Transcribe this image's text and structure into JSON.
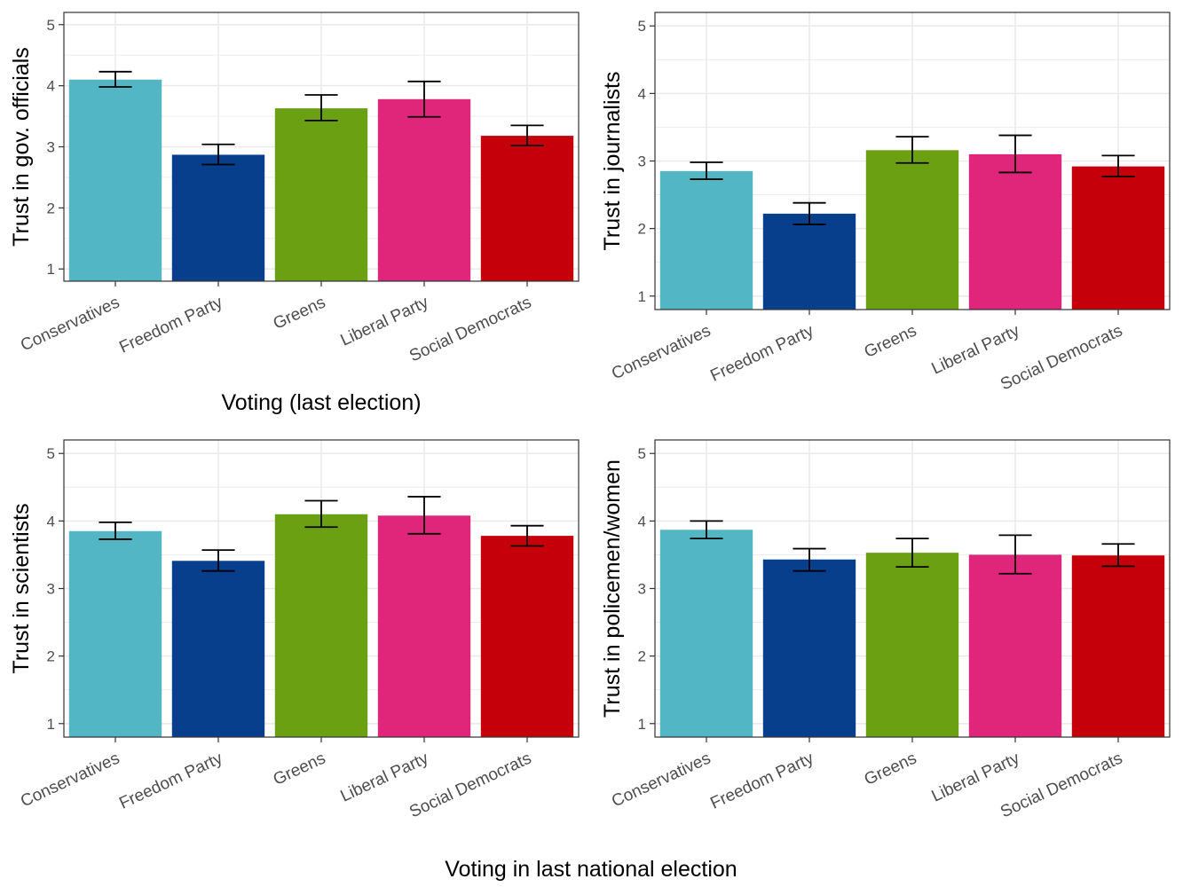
{
  "figure": {
    "xlabel": "Voting in last national election"
  },
  "chart_data": [
    {
      "type": "bar",
      "categories": [
        "Conservatives",
        "Freedom Party",
        "Greens",
        "Liberal Party",
        "Social Democrats"
      ],
      "values": [
        4.1,
        2.87,
        3.63,
        3.78,
        3.18
      ],
      "error_low": [
        3.98,
        2.71,
        3.43,
        3.49,
        3.02
      ],
      "error_high": [
        4.23,
        3.04,
        3.85,
        4.07,
        3.35
      ],
      "colors": [
        "#52b6c4",
        "#073f8d",
        "#6aa012",
        "#e0267a",
        "#c5000b"
      ],
      "ylabel": "Trust in gov. officials",
      "xlabel": "Voting (last election)",
      "ylim": [
        0.8,
        5.2
      ],
      "yticks": [
        1,
        2,
        3,
        4,
        5
      ],
      "grid": true
    },
    {
      "type": "bar",
      "categories": [
        "Conservatives",
        "Freedom Party",
        "Greens",
        "Liberal Party",
        "Social Democrats"
      ],
      "values": [
        2.85,
        2.22,
        3.16,
        3.1,
        2.92
      ],
      "error_low": [
        2.73,
        2.06,
        2.97,
        2.83,
        2.77
      ],
      "error_high": [
        2.98,
        2.38,
        3.36,
        3.38,
        3.08
      ],
      "colors": [
        "#52b6c4",
        "#073f8d",
        "#6aa012",
        "#e0267a",
        "#c5000b"
      ],
      "ylabel": "Trust in journalists",
      "xlabel": "",
      "ylim": [
        0.8,
        5.2
      ],
      "yticks": [
        1,
        2,
        3,
        4,
        5
      ],
      "grid": true
    },
    {
      "type": "bar",
      "categories": [
        "Conservatives",
        "Freedom Party",
        "Greens",
        "Liberal Party",
        "Social Democrats"
      ],
      "values": [
        3.85,
        3.41,
        4.1,
        4.08,
        3.78
      ],
      "error_low": [
        3.73,
        3.26,
        3.91,
        3.81,
        3.63
      ],
      "error_high": [
        3.98,
        3.57,
        4.3,
        4.36,
        3.93
      ],
      "colors": [
        "#52b6c4",
        "#073f8d",
        "#6aa012",
        "#e0267a",
        "#c5000b"
      ],
      "ylabel": "Trust in scientists",
      "xlabel": "",
      "ylim": [
        0.8,
        5.2
      ],
      "yticks": [
        1,
        2,
        3,
        4,
        5
      ],
      "grid": true
    },
    {
      "type": "bar",
      "categories": [
        "Conservatives",
        "Freedom Party",
        "Greens",
        "Liberal Party",
        "Social Democrats"
      ],
      "values": [
        3.87,
        3.43,
        3.53,
        3.5,
        3.49
      ],
      "error_low": [
        3.74,
        3.26,
        3.32,
        3.22,
        3.33
      ],
      "error_high": [
        4.0,
        3.59,
        3.74,
        3.79,
        3.66
      ],
      "colors": [
        "#52b6c4",
        "#073f8d",
        "#6aa012",
        "#e0267a",
        "#c5000b"
      ],
      "ylabel": "Trust in policemen/women",
      "xlabel": "",
      "ylim": [
        0.8,
        5.2
      ],
      "yticks": [
        1,
        2,
        3,
        4,
        5
      ],
      "grid": true
    }
  ]
}
